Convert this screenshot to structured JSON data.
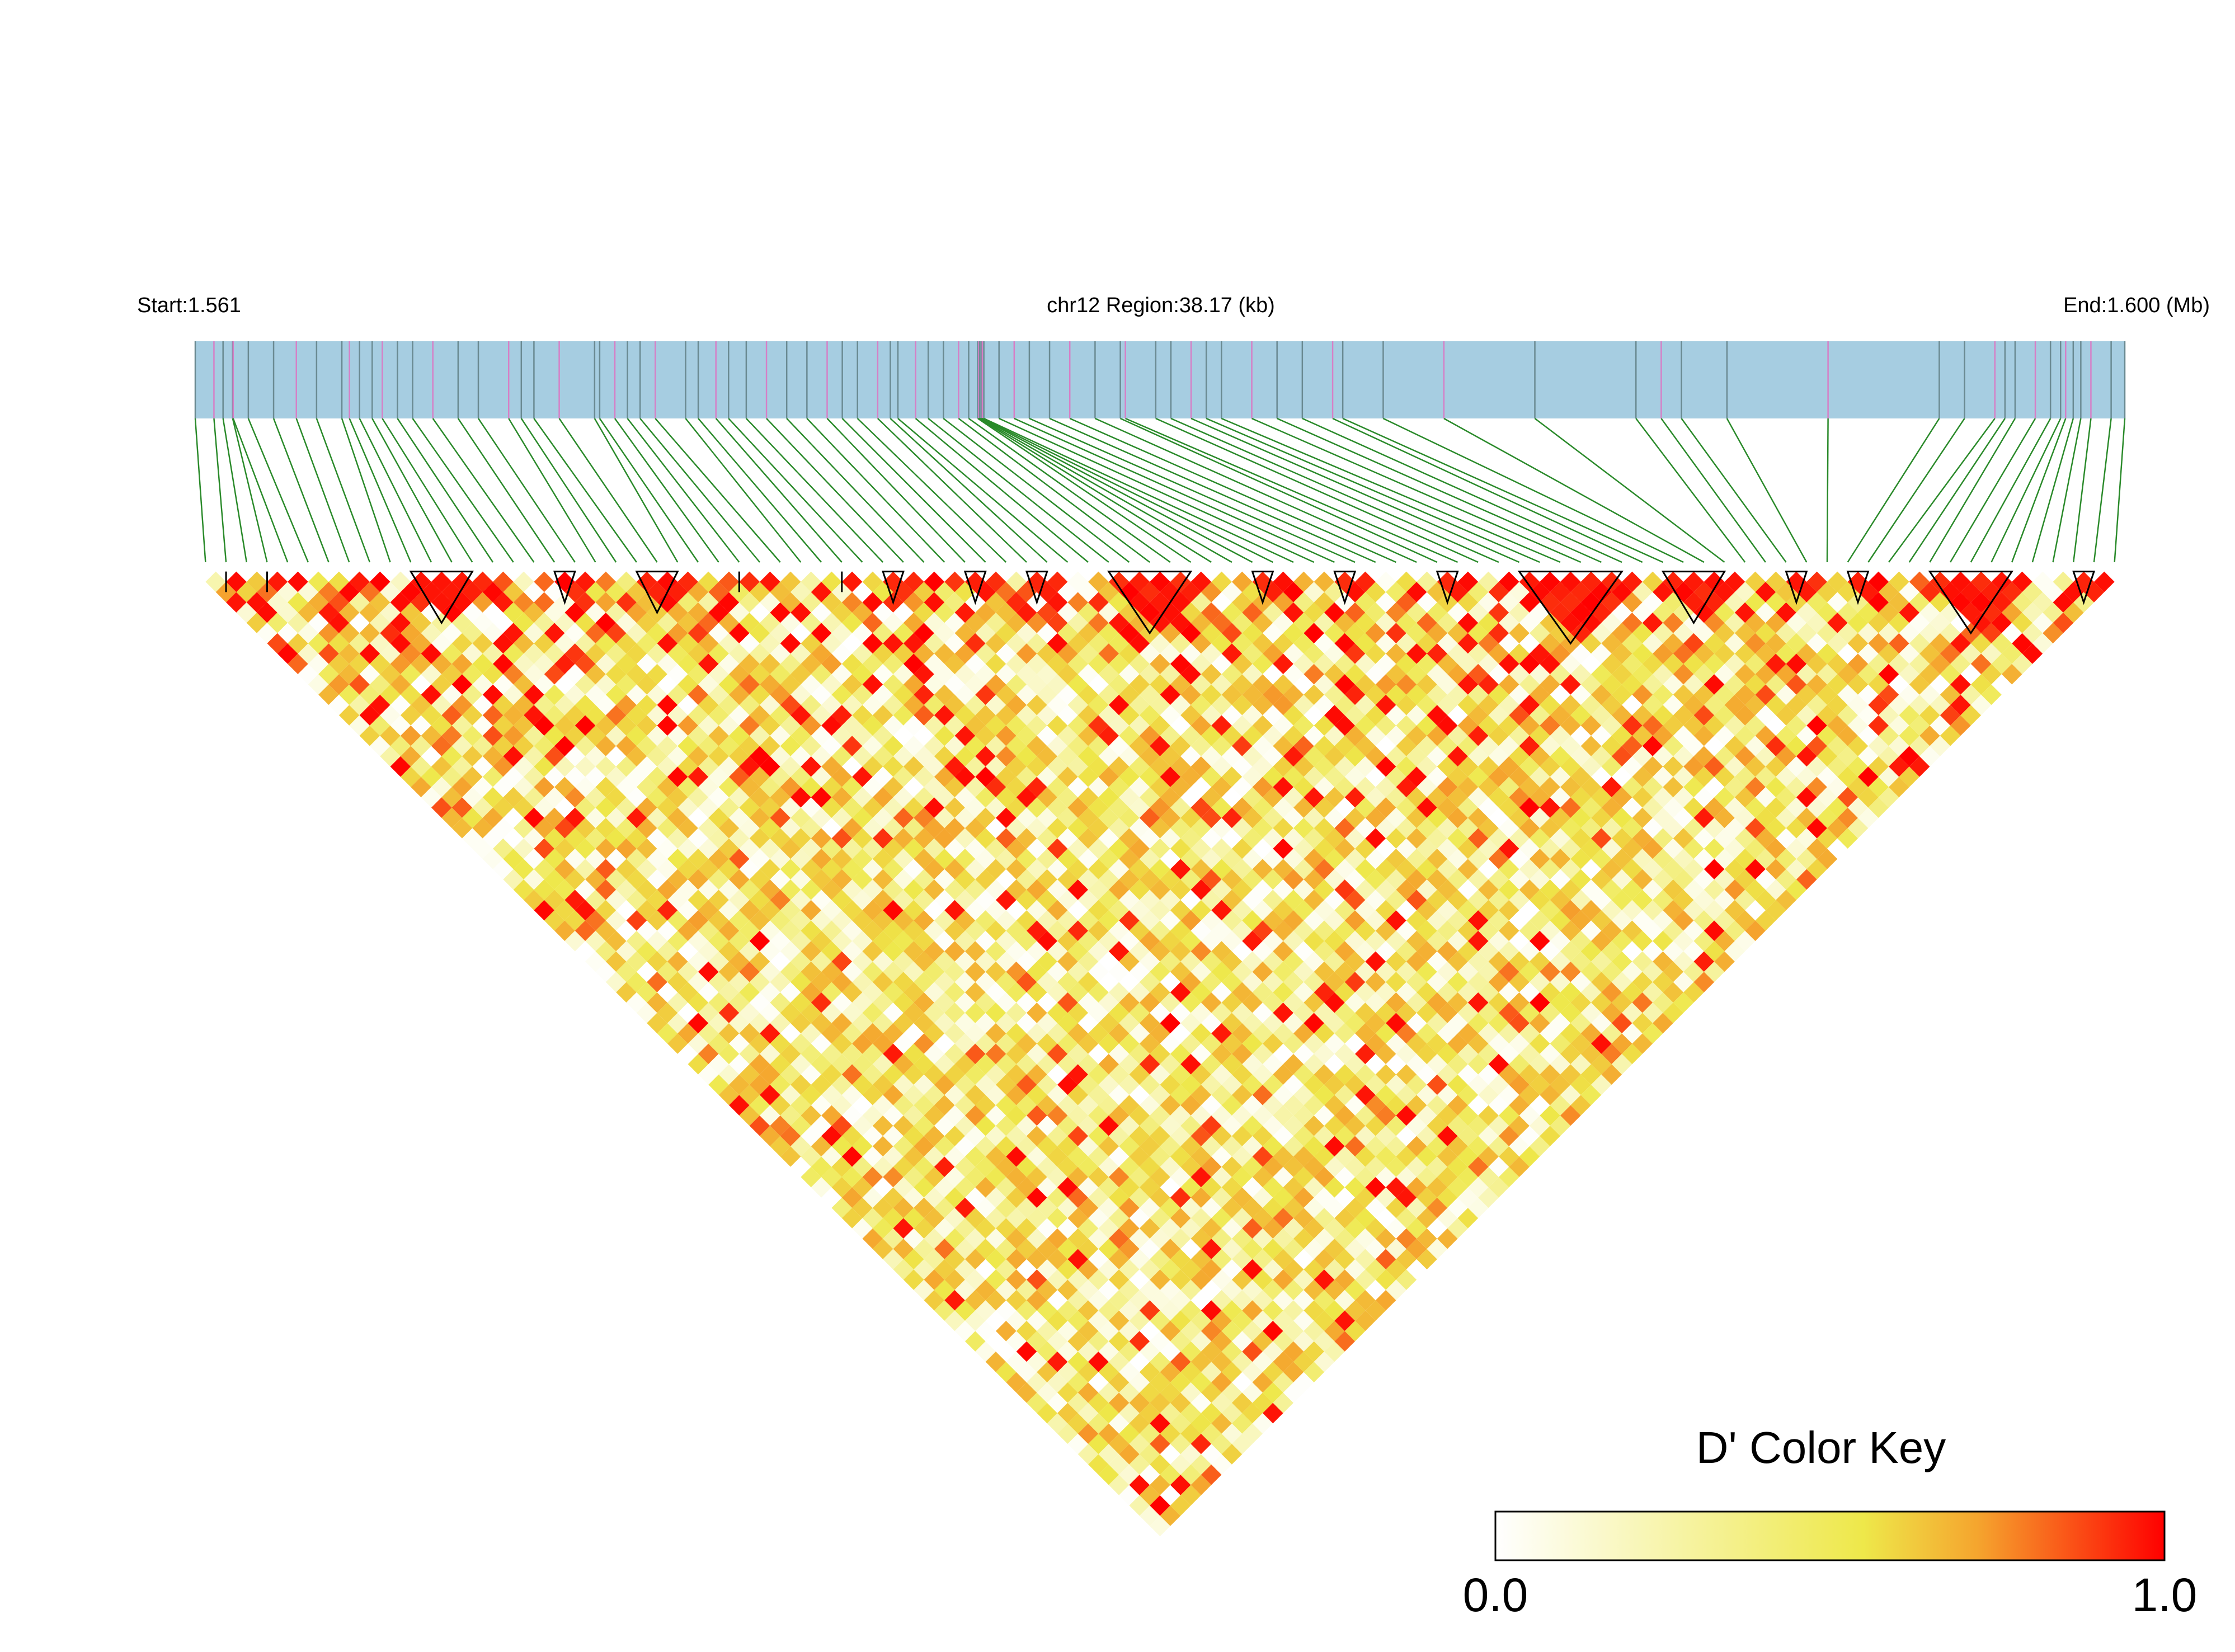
{
  "chart_data": {
    "type": "heatmap",
    "subtype": "linkage-disequilibrium-triangle",
    "region_start_label": "Start:1.561",
    "region_title": "chr12 Region:38.17 (kb)",
    "region_end_label": "End:1.600 (Mb)",
    "region_start_mb": 1.561,
    "region_end_mb": 1.6,
    "region_length_kb": 38.17,
    "snp_count": 94,
    "snp_positions_kb": [
      0.0,
      0.37,
      0.55,
      0.74,
      0.75,
      1.05,
      1.55,
      2.0,
      2.4,
      2.9,
      3.05,
      3.25,
      3.5,
      3.7,
      4.0,
      4.3,
      4.7,
      5.2,
      5.6,
      6.2,
      6.45,
      6.7,
      7.2,
      7.9,
      8.0,
      8.3,
      8.55,
      8.8,
      9.1,
      9.7,
      9.95,
      10.3,
      10.55,
      10.9,
      11.3,
      11.7,
      12.1,
      12.5,
      12.8,
      13.1,
      13.5,
      13.75,
      13.9,
      14.25,
      14.5,
      14.8,
      15.1,
      15.3,
      15.48,
      15.5,
      15.52,
      15.55,
      15.57,
      15.6,
      15.9,
      16.2,
      16.5,
      16.9,
      17.3,
      17.8,
      18.3,
      18.4,
      19.0,
      19.3,
      19.7,
      20.0,
      20.3,
      20.9,
      21.4,
      21.9,
      22.5,
      22.7,
      23.5,
      24.7,
      26.5,
      28.5,
      29.0,
      29.4,
      30.3,
      32.3,
      34.5,
      35.0,
      35.6,
      35.8,
      36.0,
      36.4,
      36.7,
      36.9,
      37.0,
      37.15,
      37.3,
      37.5,
      37.9,
      38.17
    ],
    "ld_blocks": [
      [
        1,
        2
      ],
      [
        3,
        4
      ],
      [
        10,
        14
      ],
      [
        17,
        19
      ],
      [
        21,
        24
      ],
      [
        26,
        27
      ],
      [
        31,
        32
      ],
      [
        33,
        35
      ],
      [
        37,
        39
      ],
      [
        40,
        42
      ],
      [
        44,
        49
      ],
      [
        51,
        53
      ],
      [
        55,
        57
      ],
      [
        60,
        62
      ],
      [
        64,
        70
      ],
      [
        71,
        75
      ],
      [
        77,
        79
      ],
      [
        80,
        82
      ],
      [
        84,
        89
      ],
      [
        91,
        93
      ]
    ],
    "color_scale": {
      "metric": "D'",
      "min": 0.0,
      "max": 1.0,
      "colors": [
        "#ffffff",
        "#eee84a",
        "#f5a52e",
        "#ff0000"
      ]
    },
    "legend": {
      "title": "D' Color Key",
      "min_label": "0.0",
      "max_label": "1.0",
      "placement": "bottom-right"
    },
    "grid": false
  }
}
